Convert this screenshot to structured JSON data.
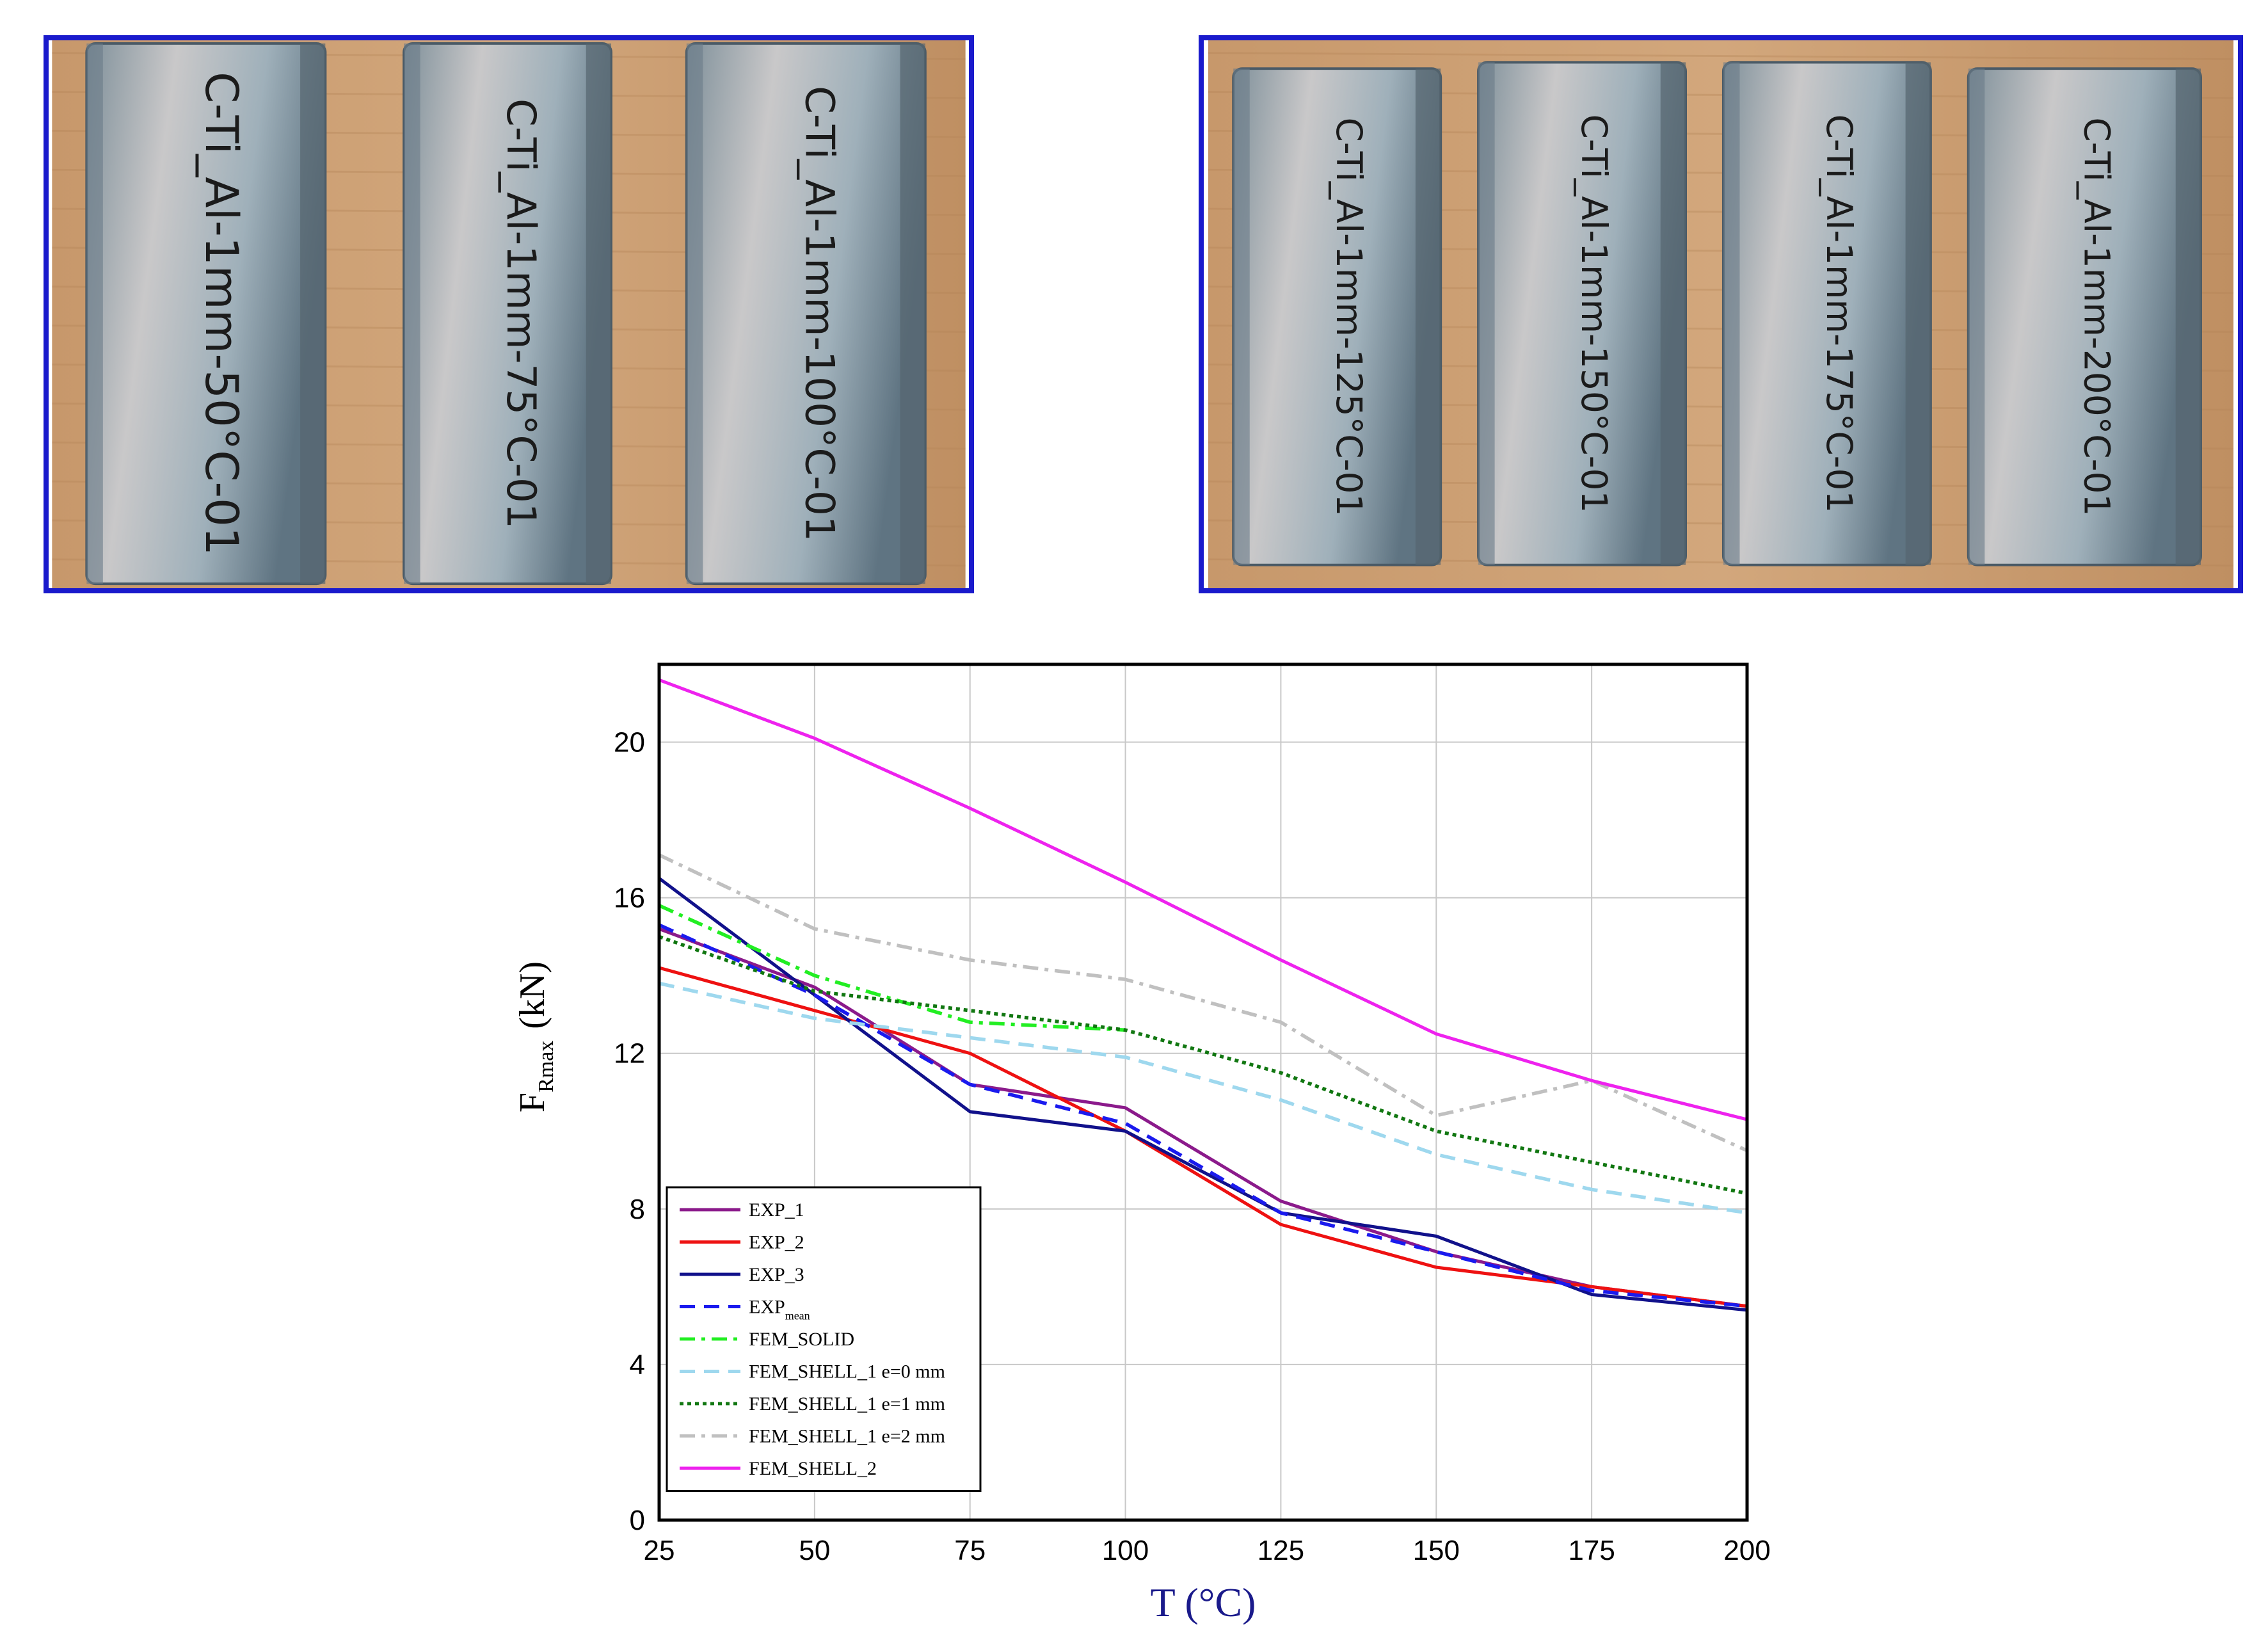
{
  "photos": {
    "left_labels": [
      "C-Ti_Al-1mm-50°C-01",
      "C-Ti_Al-1mm-75°C-01",
      "C-Ti_Al-1mm-100°C-01"
    ],
    "right_labels": [
      "C-Ti_Al-1mm-125°C-01",
      "C-Ti_Al-1mm-150°C-01",
      "C-Ti_Al-1mm-175°C-01",
      "C-Ti_Al-1mm-200°C-01"
    ],
    "colors": {
      "frame": "#1a1acc",
      "wood": "#c89a6e",
      "metal": "#a8b4bd"
    }
  },
  "chart_data": {
    "type": "line",
    "xlabel": "T (°C)",
    "ylabel_main": "F",
    "ylabel_sub": "Rmax",
    "ylabel_unit": "(kN)",
    "xlim": [
      25,
      200
    ],
    "ylim": [
      0,
      22
    ],
    "x_ticks": [
      "25",
      "50",
      "75",
      "100",
      "125",
      "150",
      "175",
      "200"
    ],
    "y_ticks": [
      "0",
      "4",
      "8",
      "12",
      "16",
      "20"
    ],
    "grid": true,
    "legend_position": "bottom-left",
    "x": [
      25,
      50,
      75,
      100,
      125,
      150,
      175,
      200
    ],
    "series": [
      {
        "name": "EXP_1",
        "color": "#8b1a8b",
        "dash": "solid",
        "values": [
          15.2,
          13.7,
          11.2,
          10.6,
          8.2,
          6.9,
          6.0,
          5.5
        ]
      },
      {
        "name": "EXP_2",
        "color": "#ee1111",
        "dash": "solid",
        "values": [
          14.2,
          13.1,
          12.0,
          10.0,
          7.6,
          6.5,
          6.0,
          5.5
        ]
      },
      {
        "name": "EXP_3",
        "color": "#11118b",
        "dash": "solid",
        "values": [
          16.5,
          13.5,
          10.5,
          10.0,
          7.9,
          7.3,
          5.8,
          5.4
        ]
      },
      {
        "name": "EXP",
        "name_sub": "mean",
        "color": "#1a1aee",
        "dash": "dashed",
        "values": [
          15.3,
          13.5,
          11.2,
          10.2,
          7.9,
          6.9,
          5.9,
          5.5
        ]
      },
      {
        "name": "FEM_SOLID",
        "color": "#22ee22",
        "dash": "dashdot",
        "values": [
          15.8,
          14.0,
          12.8,
          12.6,
          null,
          null,
          null,
          null
        ]
      },
      {
        "name": "FEM_SHELL_1 e=0 mm",
        "color": "#9ed8ee",
        "dash": "dashed",
        "values": [
          13.8,
          12.9,
          12.4,
          11.9,
          10.8,
          9.4,
          8.5,
          7.9
        ]
      },
      {
        "name": "FEM_SHELL_1 e=1 mm",
        "color": "#117711",
        "dash": "dotted",
        "values": [
          15.0,
          13.6,
          13.1,
          12.6,
          11.5,
          10.0,
          9.2,
          8.4
        ]
      },
      {
        "name": "FEM_SHELL_1 e=2 mm",
        "color": "#c0c0c0",
        "dash": "dashdot",
        "values": [
          17.1,
          15.2,
          14.4,
          13.9,
          12.8,
          10.4,
          11.3,
          9.5
        ]
      },
      {
        "name": "FEM_SHELL_2",
        "color": "#ee22ee",
        "dash": "solid",
        "values": [
          21.6,
          20.1,
          18.3,
          16.4,
          14.4,
          12.5,
          11.3,
          10.3
        ]
      }
    ]
  }
}
